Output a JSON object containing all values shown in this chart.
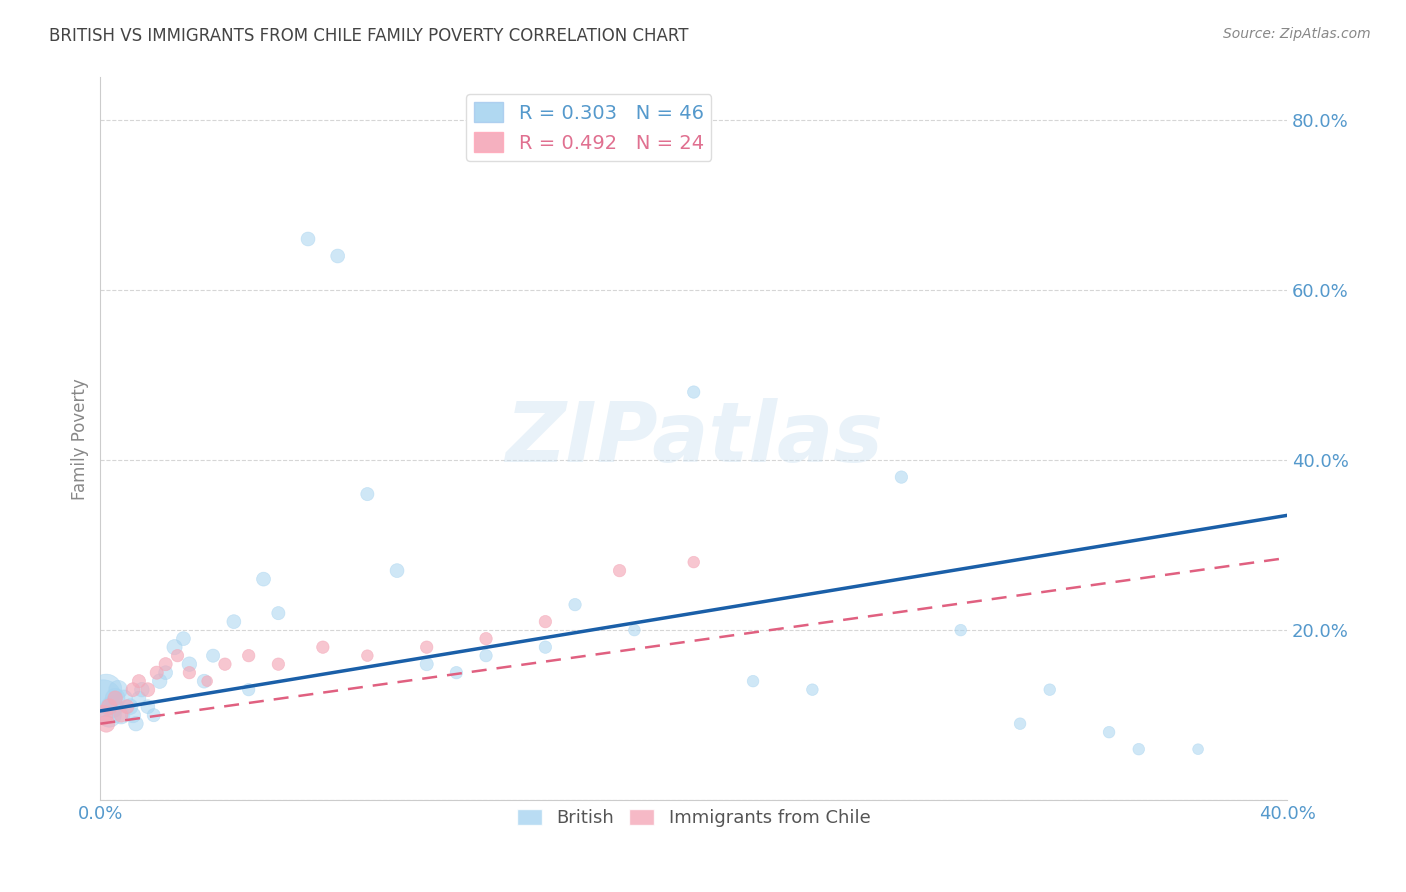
{
  "title": "BRITISH VS IMMIGRANTS FROM CHILE FAMILY POVERTY CORRELATION CHART",
  "source": "Source: ZipAtlas.com",
  "ylabel": "Family Poverty",
  "xlim": [
    0.0,
    0.4
  ],
  "ylim": [
    0.0,
    0.85
  ],
  "british_R": 0.303,
  "british_N": 46,
  "chile_R": 0.492,
  "chile_N": 24,
  "british_color": "#a8d4f0",
  "chile_color": "#f4a8b8",
  "british_line_color": "#1a5fa8",
  "chile_line_color": "#e06080",
  "watermark": "ZIPatlas",
  "british_x": [
    0.001,
    0.002,
    0.003,
    0.004,
    0.005,
    0.006,
    0.007,
    0.008,
    0.01,
    0.011,
    0.012,
    0.013,
    0.014,
    0.016,
    0.018,
    0.02,
    0.022,
    0.025,
    0.028,
    0.03,
    0.035,
    0.038,
    0.045,
    0.05,
    0.055,
    0.06,
    0.07,
    0.08,
    0.09,
    0.1,
    0.11,
    0.12,
    0.13,
    0.15,
    0.16,
    0.18,
    0.2,
    0.22,
    0.24,
    0.27,
    0.29,
    0.31,
    0.32,
    0.34,
    0.35,
    0.37
  ],
  "british_y": [
    0.12,
    0.13,
    0.1,
    0.11,
    0.12,
    0.13,
    0.1,
    0.12,
    0.11,
    0.1,
    0.09,
    0.12,
    0.13,
    0.11,
    0.1,
    0.14,
    0.15,
    0.18,
    0.19,
    0.16,
    0.14,
    0.17,
    0.21,
    0.13,
    0.26,
    0.22,
    0.66,
    0.64,
    0.36,
    0.27,
    0.16,
    0.15,
    0.17,
    0.18,
    0.23,
    0.2,
    0.48,
    0.14,
    0.13,
    0.38,
    0.2,
    0.09,
    0.13,
    0.08,
    0.06,
    0.06
  ],
  "british_size": [
    700,
    500,
    300,
    250,
    200,
    180,
    160,
    140,
    130,
    120,
    110,
    100,
    110,
    100,
    90,
    110,
    100,
    120,
    100,
    110,
    100,
    90,
    100,
    80,
    100,
    90,
    100,
    100,
    90,
    100,
    90,
    80,
    80,
    80,
    80,
    70,
    80,
    70,
    70,
    80,
    70,
    70,
    70,
    70,
    70,
    60
  ],
  "chile_x": [
    0.001,
    0.002,
    0.003,
    0.005,
    0.007,
    0.009,
    0.011,
    0.013,
    0.016,
    0.019,
    0.022,
    0.026,
    0.03,
    0.036,
    0.042,
    0.05,
    0.06,
    0.075,
    0.09,
    0.11,
    0.13,
    0.15,
    0.175,
    0.2
  ],
  "chile_y": [
    0.1,
    0.09,
    0.11,
    0.12,
    0.1,
    0.11,
    0.13,
    0.14,
    0.13,
    0.15,
    0.16,
    0.17,
    0.15,
    0.14,
    0.16,
    0.17,
    0.16,
    0.18,
    0.17,
    0.18,
    0.19,
    0.21,
    0.27,
    0.28
  ],
  "chile_size": [
    200,
    150,
    130,
    110,
    100,
    100,
    100,
    90,
    100,
    90,
    90,
    80,
    80,
    60,
    80,
    80,
    80,
    80,
    70,
    80,
    80,
    80,
    80,
    70
  ],
  "british_line_x0": 0.0,
  "british_line_y0": 0.105,
  "british_line_x1": 0.4,
  "british_line_y1": 0.335,
  "chile_line_x0": 0.0,
  "chile_line_y0": 0.09,
  "chile_line_x1": 0.4,
  "chile_line_y1": 0.285
}
